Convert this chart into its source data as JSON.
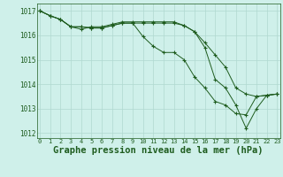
{
  "line1": [
    1017.0,
    1016.8,
    1016.65,
    1016.35,
    1016.25,
    1016.35,
    1016.35,
    1016.45,
    1016.55,
    1016.55,
    1016.55,
    1016.55,
    1016.55,
    1016.55,
    1016.4,
    1016.15,
    1015.7,
    1015.2,
    1014.7,
    1013.85,
    1013.6,
    1013.5,
    1013.55,
    1013.6
  ],
  "line2": [
    1017.0,
    1016.8,
    1016.65,
    1016.35,
    1016.35,
    1016.3,
    1016.3,
    1016.4,
    1016.5,
    1016.5,
    1015.95,
    1015.55,
    1015.3,
    1015.3,
    1015.0,
    1014.3,
    1013.85,
    1013.3,
    1013.15,
    1012.8,
    1012.75,
    1013.5,
    1013.55,
    1013.6
  ],
  "line3": [
    1017.0,
    1016.8,
    1016.65,
    1016.35,
    1016.35,
    1016.3,
    1016.3,
    1016.4,
    1016.5,
    1016.5,
    1016.5,
    1016.5,
    1016.5,
    1016.5,
    1016.4,
    1016.15,
    1015.5,
    1014.2,
    1013.85,
    1013.15,
    1012.2,
    1013.0,
    1013.55,
    1013.6
  ],
  "hours": [
    0,
    1,
    2,
    3,
    4,
    5,
    6,
    7,
    8,
    9,
    10,
    11,
    12,
    13,
    14,
    15,
    16,
    17,
    18,
    19,
    20,
    21,
    22,
    23
  ],
  "ylim": [
    1011.8,
    1017.3
  ],
  "yticks": [
    1012,
    1013,
    1014,
    1015,
    1016,
    1017
  ],
  "bg_color": "#cff0ea",
  "line_color": "#1e5c1e",
  "grid_color": "#b0d8d0",
  "xlabel": "Graphe pression niveau de la mer (hPa)",
  "xlabel_fontsize": 7.5,
  "tick_fontsize": 5.0,
  "ytick_fontsize": 5.5
}
